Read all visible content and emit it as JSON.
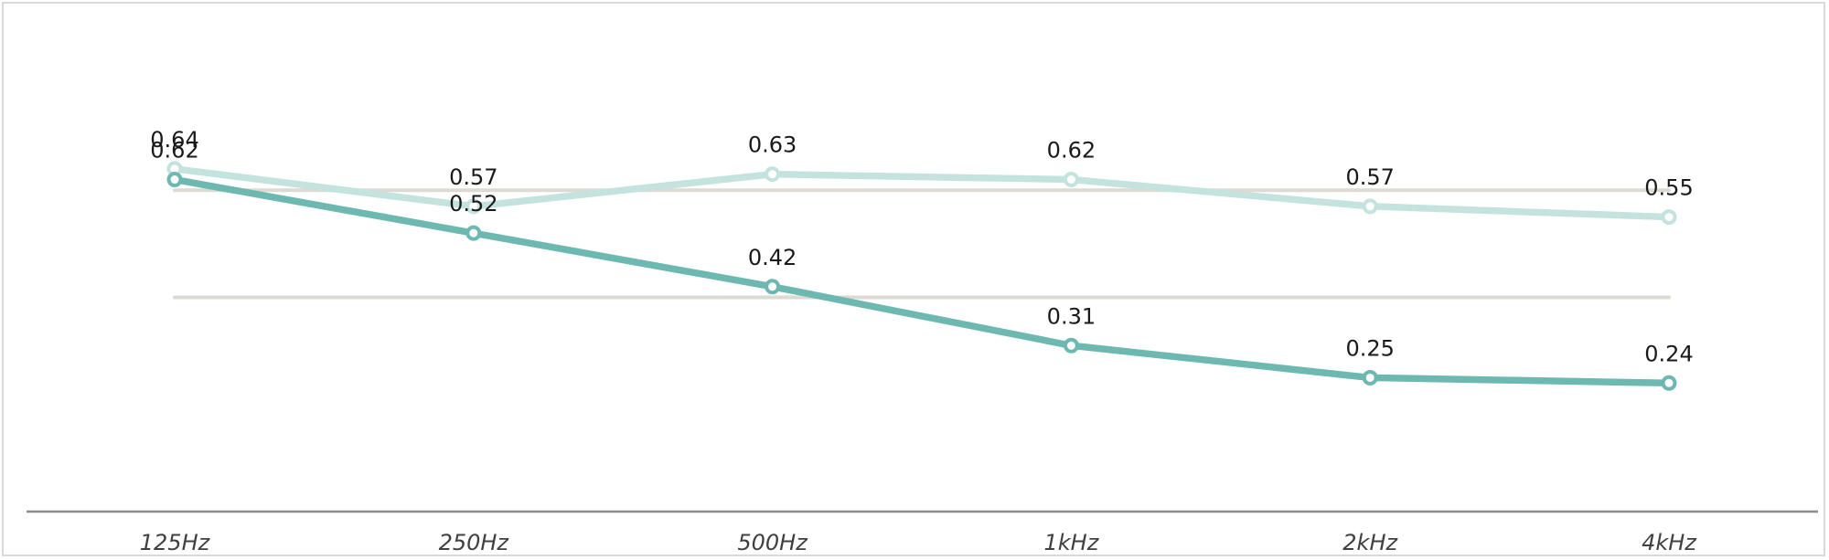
{
  "chart_data": {
    "type": "line",
    "title": "",
    "xlabel": "",
    "ylabel": "",
    "categories": [
      "125Hz",
      "250Hz",
      "500Hz",
      "1kHz",
      "2kHz",
      "4kHz"
    ],
    "ylim": [
      0,
      0.8
    ],
    "grid": true,
    "gridlines": [
      0.4,
      0.6
    ],
    "legend": "none",
    "series": [
      {
        "values": [
          0.64,
          0.57,
          0.63,
          0.62,
          0.57,
          0.55
        ],
        "color": "#c4e3df"
      },
      {
        "values": [
          0.62,
          0.52,
          0.42,
          0.31,
          0.25,
          0.24
        ],
        "color": "#6db8b0"
      }
    ],
    "colors": {
      "gridline": "#ddd9d3",
      "axis": "#8c8c8c",
      "frame": "#d9d9d9"
    }
  }
}
